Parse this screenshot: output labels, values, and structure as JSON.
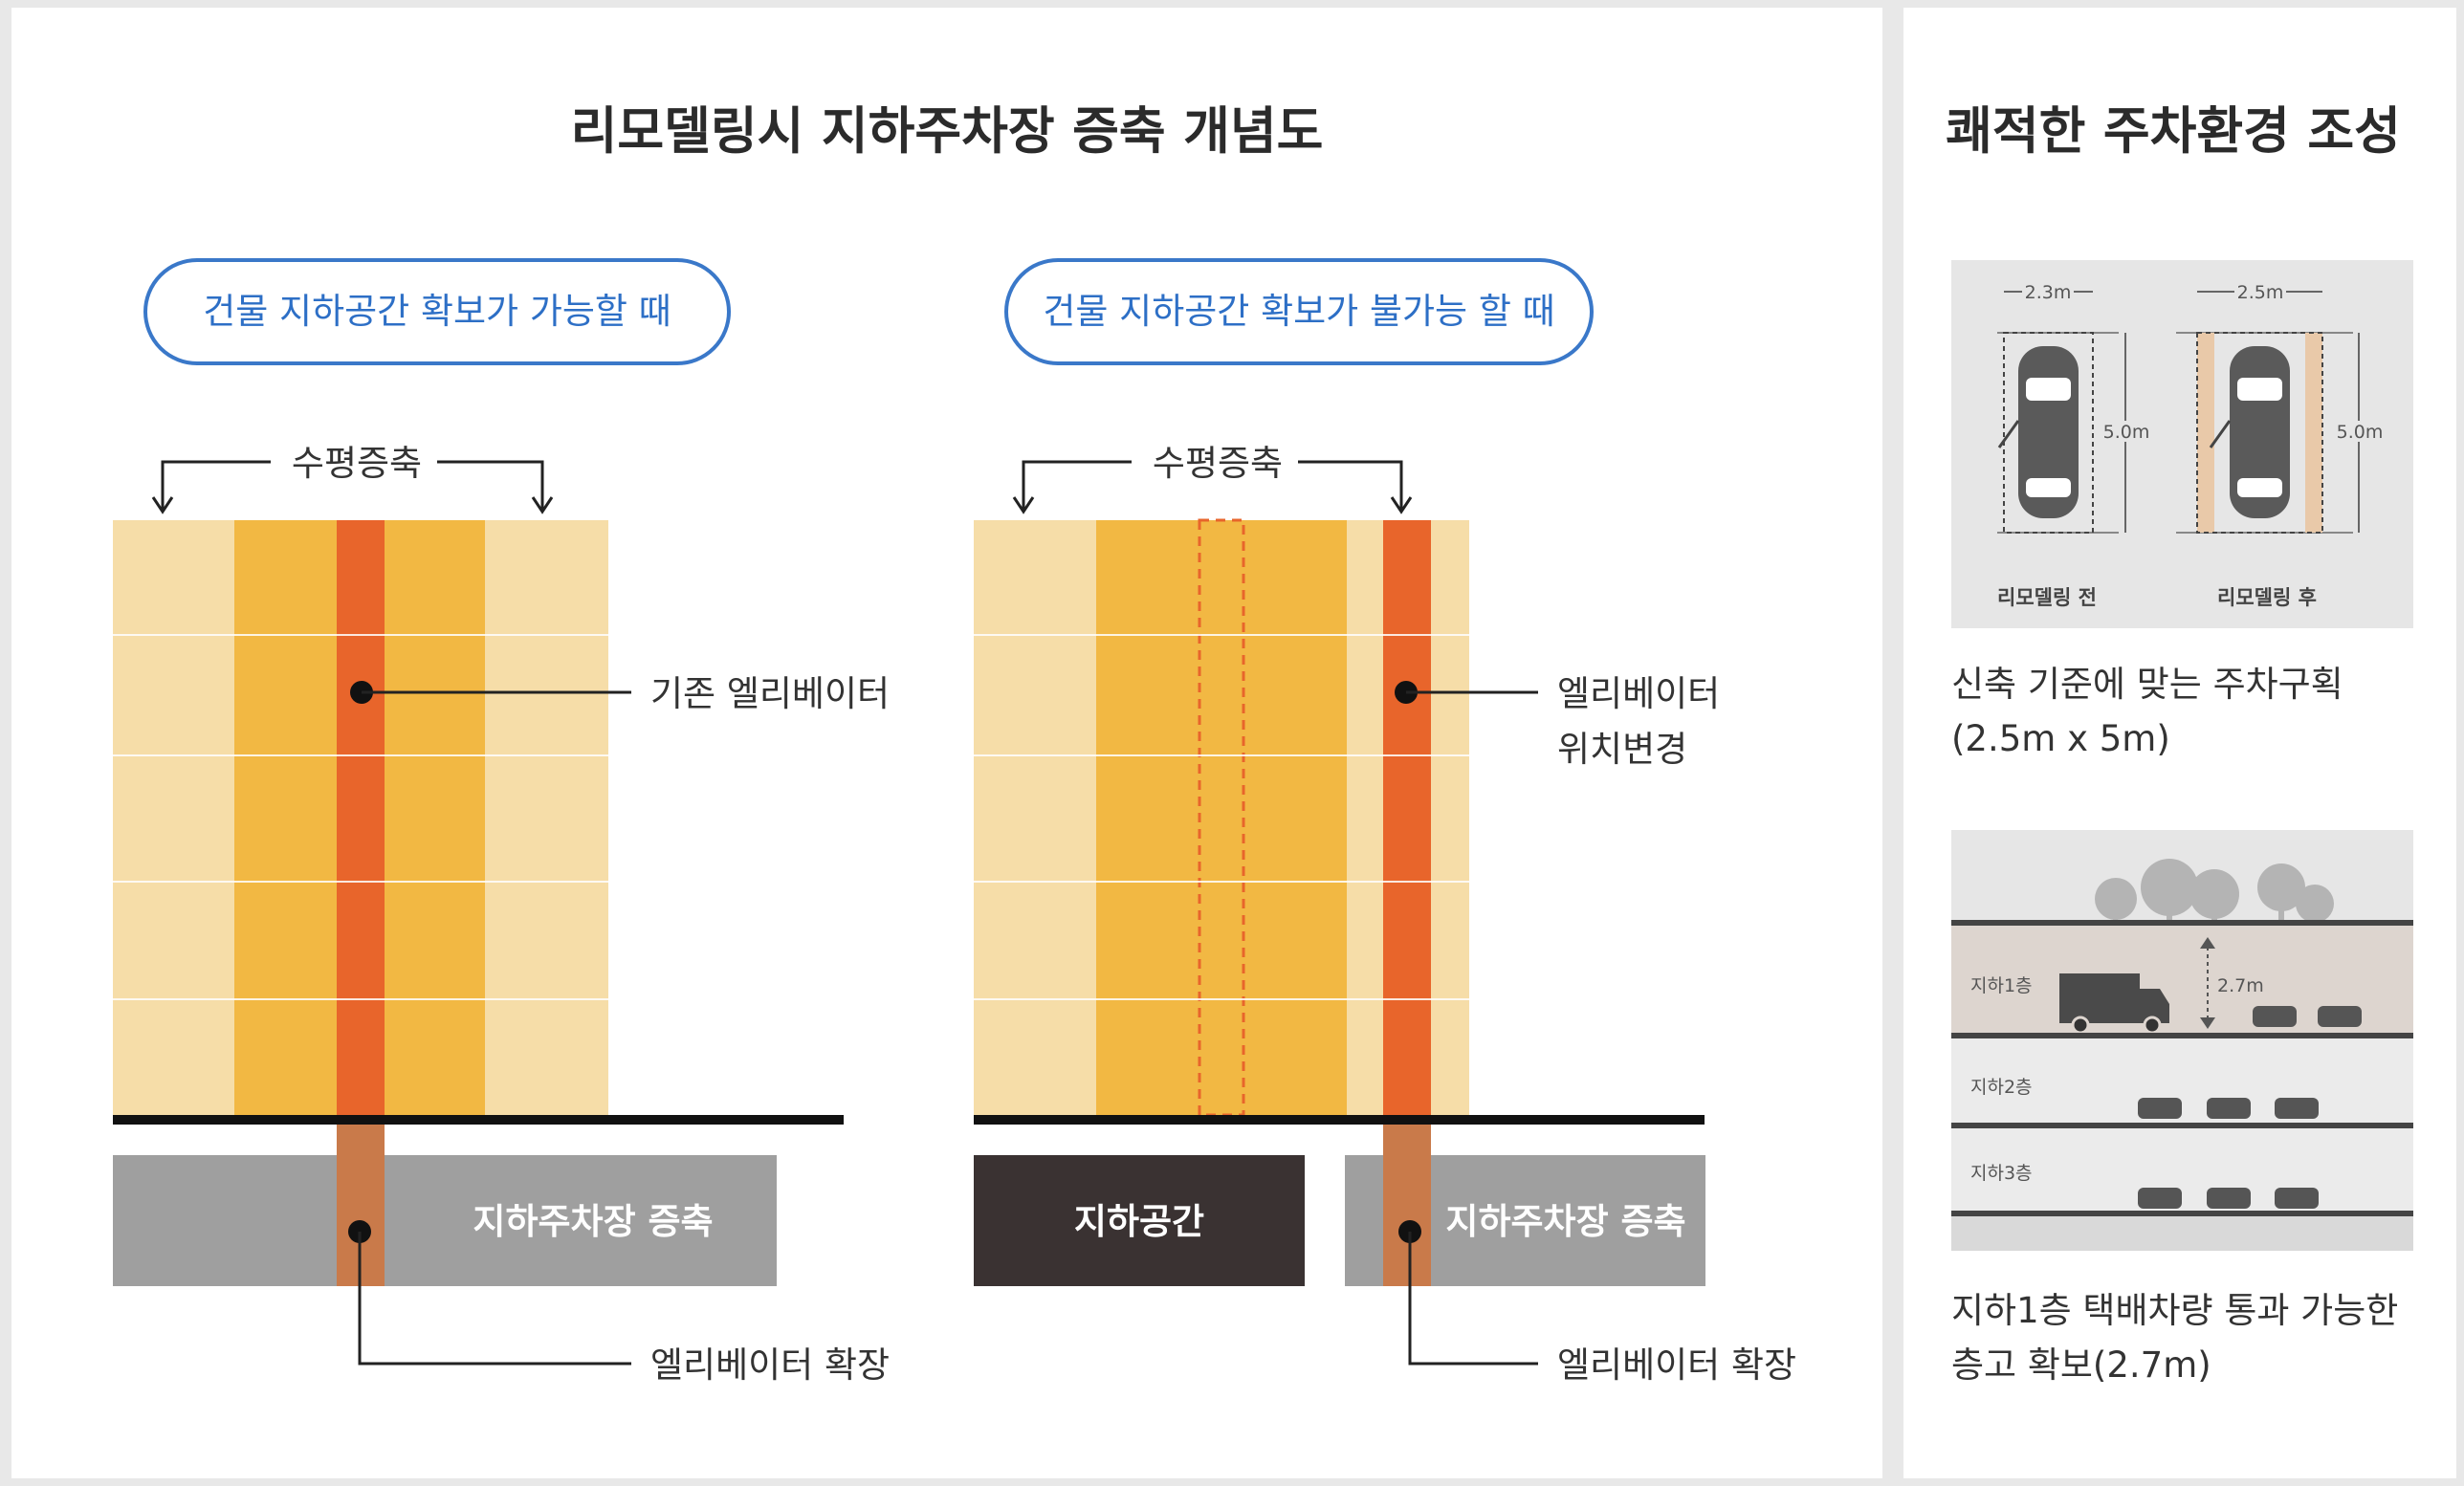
{
  "left": {
    "title": "리모델링시 지하주차장 증축 개념도",
    "case_possible": {
      "pill": "건물 지하공간 확보가 가능할 때",
      "horizontal_label": "수평증축",
      "elevator_label": "기존 엘리베이터",
      "parking_label": "지하주차장 증축",
      "expansion_label": "엘리베이터 확장"
    },
    "case_impossible": {
      "pill": "건물 지하공간 확보가  불가능 할 때",
      "horizontal_label": "수평증축",
      "elevator_label_line1": "엘리베이터",
      "elevator_label_line2": "위치변경",
      "underground_label": "지하공간",
      "parking_label": "지하주차장 증축",
      "expansion_label": "엘리베이터 확장"
    }
  },
  "right": {
    "title": "쾌적한 주차환경 조성",
    "plan": {
      "before_width": "2.3m",
      "after_width": "2.5m",
      "length_before": "5.0m",
      "length_after": "5.0m",
      "before_label": "리모델링 전",
      "after_label": "리모델링 후"
    },
    "caption1_line1": "신축 기준에 맞는 주차구획",
    "caption1_line2": "(2.5m x 5m)",
    "section": {
      "floor1": "지하1층",
      "floor2": "지하2층",
      "floor3": "지하3층",
      "height": "2.7m"
    },
    "caption2_line1": "지하1층 택배차량 통과 가능한",
    "caption2_line2": "층고 확보(2.7m)"
  },
  "colors": {
    "light_orange": "#f6dda8",
    "mid_orange": "#f2b843",
    "elevator": "#e8652b",
    "elevator_shaft": "#c97a4a",
    "parking_gray": "#9f9f9f",
    "underground_dark": "#3a3232",
    "pill_blue": "#3a78c9"
  }
}
